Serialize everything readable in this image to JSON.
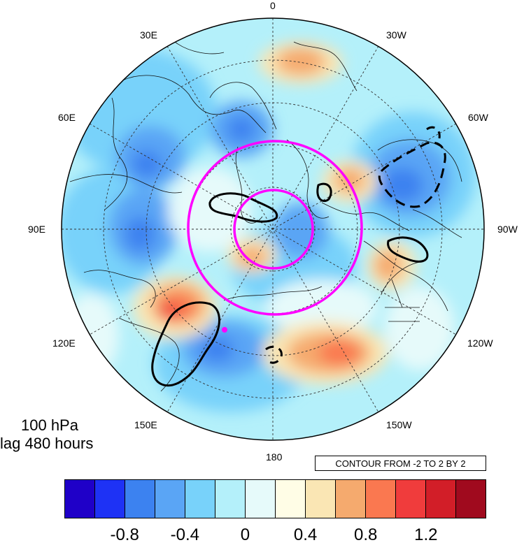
{
  "panel": {
    "level": "100 hPa",
    "lag": "lag 480 hours"
  },
  "contour_info": "CONTOUR FROM -2 TO 2 BY 2",
  "longitude_labels": {
    "lon_0": "0",
    "lon_30e": "30E",
    "lon_30w": "30W",
    "lon_60e": "60E",
    "lon_60w": "60W",
    "lon_90e": "90E",
    "lon_90w": "90W",
    "lon_120e": "120E",
    "lon_120w": "120W",
    "lon_150e": "150E",
    "lon_150w": "150W",
    "lon_180": "180"
  },
  "colorbar": {
    "colors": [
      "#1f00c8",
      "#1e32f5",
      "#3c82f0",
      "#5aa5f5",
      "#78d2fa",
      "#b4f0fa",
      "#e6fafa",
      "#fffde6",
      "#fae6b4",
      "#f5aa6e",
      "#fa7850",
      "#f03c3c",
      "#d21e28",
      "#a00a1e"
    ],
    "tick_labels": [
      "-0.8",
      "-0.4",
      "0",
      "0.4",
      "0.8",
      "1.2"
    ]
  },
  "legend_colors": {
    "contour_line": "#000000",
    "highlight": "#ff00ff"
  }
}
